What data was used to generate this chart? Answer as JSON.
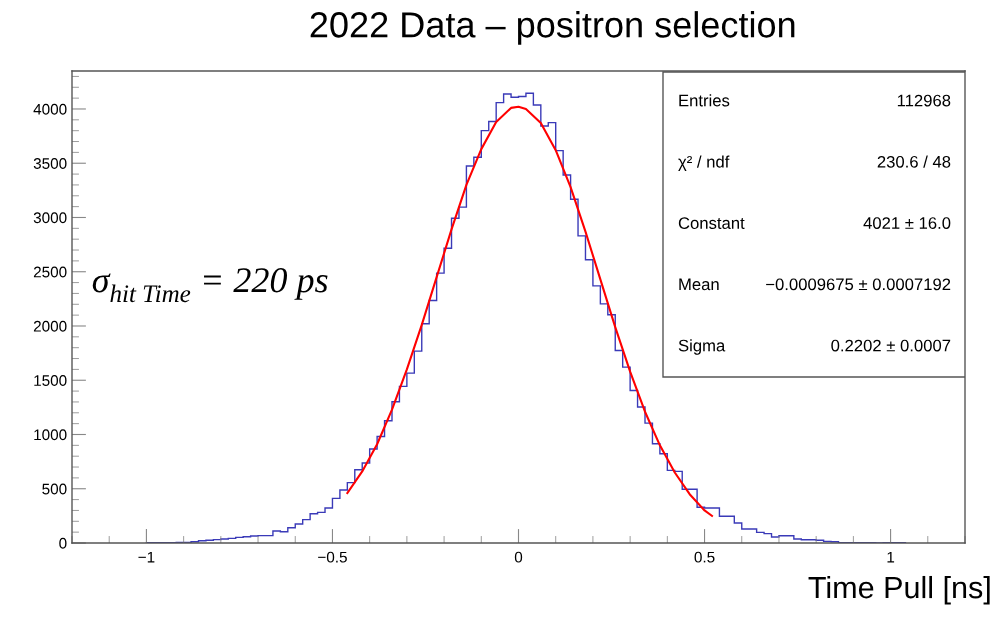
{
  "chart_data": {
    "type": "histogram",
    "title": "2022 Data – positron selection",
    "xlabel": "Time Pull [ns]",
    "xlim": [
      -1.2,
      1.2
    ],
    "ylim": [
      0,
      4350
    ],
    "xticks": [
      -1,
      -0.5,
      0,
      0.5,
      1
    ],
    "yticks": [
      0,
      500,
      1000,
      1500,
      2000,
      2500,
      3000,
      3500,
      4000
    ],
    "grid": false,
    "bins": [
      -1.0,
      -0.98,
      -0.96,
      -0.94,
      -0.92,
      -0.9,
      -0.88,
      -0.86,
      -0.84,
      -0.82,
      -0.8,
      -0.78,
      -0.76,
      -0.74,
      -0.72,
      -0.7,
      -0.68,
      -0.66,
      -0.64,
      -0.62,
      -0.6,
      -0.58,
      -0.56,
      -0.54,
      -0.52,
      -0.5,
      -0.48,
      -0.46,
      -0.44,
      -0.42,
      -0.4,
      -0.38,
      -0.36,
      -0.34,
      -0.32,
      -0.3,
      -0.28,
      -0.26,
      -0.24,
      -0.22,
      -0.2,
      -0.18,
      -0.16,
      -0.14,
      -0.12,
      -0.1,
      -0.08,
      -0.06,
      -0.04,
      -0.02,
      0.0,
      0.02,
      0.04,
      0.06,
      0.08,
      0.1,
      0.12,
      0.14,
      0.16,
      0.18,
      0.2,
      0.22,
      0.24,
      0.26,
      0.28,
      0.3,
      0.32,
      0.34,
      0.36,
      0.38,
      0.4,
      0.42,
      0.44,
      0.46,
      0.48,
      0.5,
      0.52,
      0.54,
      0.56,
      0.58,
      0.6,
      0.62,
      0.64,
      0.66,
      0.68,
      0.7,
      0.72,
      0.74,
      0.76,
      0.78,
      0.8,
      0.82,
      0.84,
      0.86,
      0.88,
      0.9,
      0.92,
      0.94,
      0.96,
      0.98,
      1.0,
      1.02,
      1.04
    ],
    "series": [
      {
        "color": "#3a3ab8",
        "values": [
          2,
          2,
          3,
          3,
          4,
          4,
          12,
          21,
          25,
          31,
          37,
          43,
          52,
          58,
          64,
          68,
          68,
          110,
          104,
          141,
          175,
          215,
          270,
          282,
          322,
          411,
          488,
          556,
          675,
          737,
          866,
          982,
          1127,
          1302,
          1443,
          1566,
          1768,
          2020,
          2235,
          2487,
          2717,
          2993,
          3095,
          3475,
          3555,
          3801,
          3884,
          4059,
          4138,
          4108,
          4115,
          4145,
          4037,
          3843,
          3874,
          3616,
          3392,
          3168,
          2831,
          2610,
          2370,
          2204,
          2103,
          1774,
          1621,
          1406,
          1253,
          1105,
          915,
          823,
          669,
          660,
          495,
          495,
          330,
          322,
          322,
          246,
          246,
          184,
          129,
          129,
          98,
          86,
          55,
          67,
          67,
          37,
          30,
          30,
          25,
          15,
          12,
          3,
          2,
          2,
          2,
          2,
          0,
          2,
          2,
          2
        ]
      },
      {
        "type": "line",
        "color": "#ff0000",
        "x": [
          -0.46,
          -0.42,
          -0.38,
          -0.34,
          -0.3,
          -0.26,
          -0.22,
          -0.18,
          -0.14,
          -0.1,
          -0.06,
          -0.02,
          0,
          0.02,
          0.06,
          0.1,
          0.14,
          0.18,
          0.22,
          0.26,
          0.3,
          0.34,
          0.38,
          0.42,
          0.46,
          0.5,
          0.52
        ],
        "values": [
          460,
          660,
          910,
          1230,
          1600,
          2010,
          2450,
          2890,
          3300,
          3630,
          3880,
          4010,
          4020,
          4000,
          3870,
          3620,
          3280,
          2870,
          2430,
          1990,
          1580,
          1210,
          900,
          650,
          450,
          300,
          250
        ]
      }
    ],
    "annotations": [
      "σ$_{hit Time}$ = 220 ps",
      "Entries",
      "112968",
      "χ² / ndf",
      "230.6 / 48",
      "Constant",
      "4021 ± 16.0",
      "Mean",
      "−0.0009675 ± 0.0007192",
      "Sigma",
      "0.2202 ± 0.0007"
    ]
  }
}
